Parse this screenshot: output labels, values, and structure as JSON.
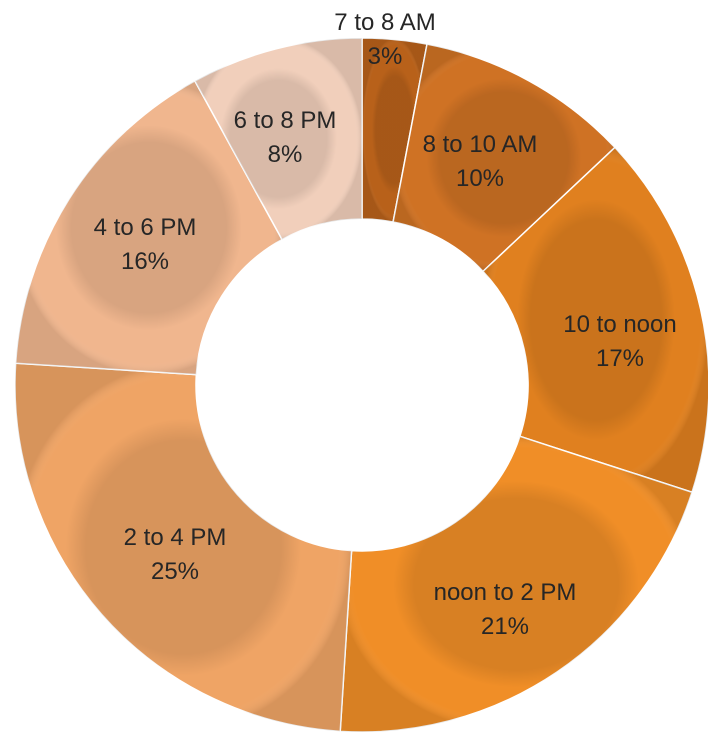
{
  "chart_data": {
    "type": "pie",
    "variant": "donut",
    "title": "",
    "categories": [
      "7 to 8 AM",
      "8 to 10 AM",
      "10 to noon",
      "noon to 2 PM",
      "2 to 4 PM",
      "4 to 6 PM",
      "6 to 8 PM"
    ],
    "values": [
      3,
      10,
      17,
      21,
      25,
      16,
      8
    ],
    "value_labels": [
      "3%",
      "10%",
      "17%",
      "21%",
      "25%",
      "16%",
      "8%"
    ],
    "colors": [
      "#b8611a",
      "#cf7224",
      "#e0801f",
      "#f08e27",
      "#efa465",
      "#f0b68e",
      "#f1cfbb"
    ],
    "legend": "none"
  }
}
